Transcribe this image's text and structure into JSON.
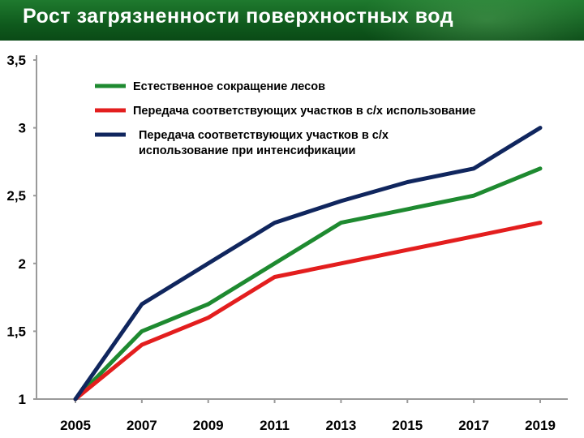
{
  "title": "Рост загрязненности поверхностных вод",
  "chart_data": {
    "type": "line",
    "x": [
      2005,
      2007,
      2009,
      2011,
      2013,
      2015,
      2017,
      2019
    ],
    "x_tick_labels": [
      "2005",
      "2007",
      "2009",
      "2011",
      "2013",
      "2015",
      "2017",
      "2019"
    ],
    "y_tick_labels": [
      "1",
      "1,5",
      "2",
      "2,5",
      "3",
      "3,5"
    ],
    "y_ticks": [
      1,
      1.5,
      2,
      2.5,
      3,
      3.5
    ],
    "ylim": [
      1,
      3.5
    ],
    "grid": false,
    "legend_position": "top-left",
    "series": [
      {
        "name_lines": [
          "Естественное сокращение лесов"
        ],
        "color": "#1e8a30",
        "values": [
          1.0,
          1.5,
          1.7,
          2.0,
          2.3,
          2.4,
          2.5,
          2.7
        ]
      },
      {
        "name_lines": [
          "Передача соответствующих участков в с/х использование"
        ],
        "color": "#e31e1e",
        "values": [
          1.0,
          1.4,
          1.6,
          1.9,
          2.0,
          2.1,
          2.2,
          2.3
        ]
      },
      {
        "name_lines": [
          "Передача соответствующих участков в с/х",
          "использование при интенсификации"
        ],
        "color": "#10265e",
        "values": [
          1.0,
          1.7,
          2.0,
          2.3,
          2.46,
          2.6,
          2.7,
          3.0
        ]
      }
    ]
  }
}
